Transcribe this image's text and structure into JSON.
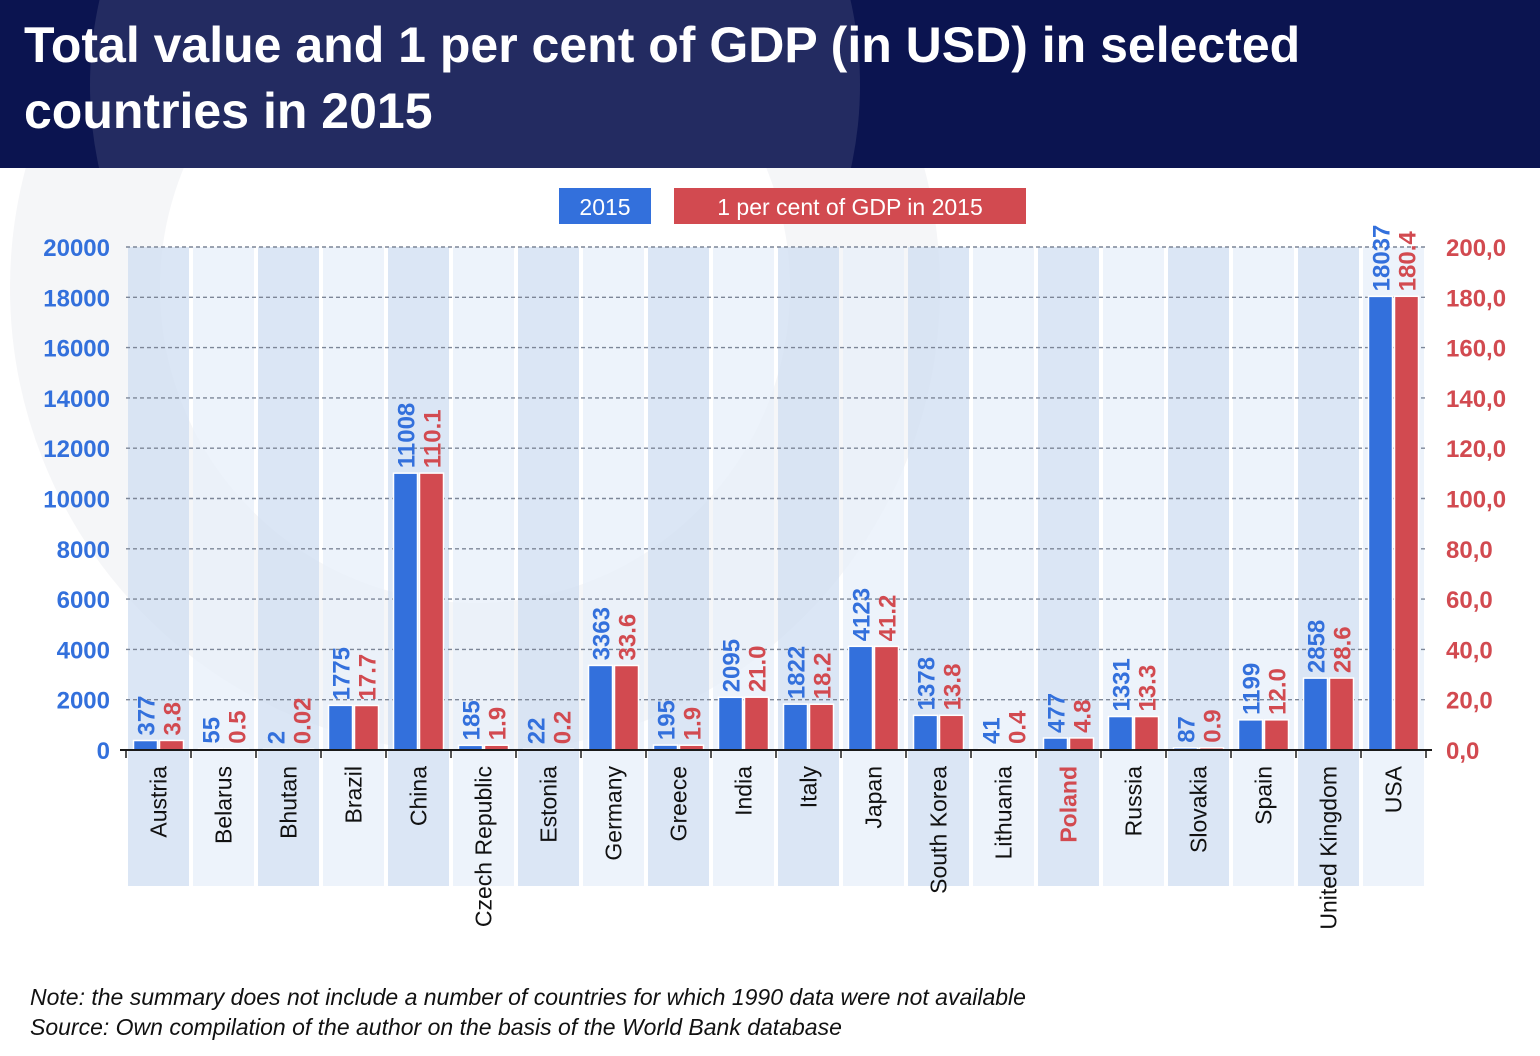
{
  "title": "Total value and 1 per cent of GDP (in USD) in selected countries in 2015",
  "note": "Note: the summary does not include a number of countries for which 1990 data were not available",
  "source": "Source: Own compilation of the author on the basis of the World Bank database",
  "colors": {
    "header_bg": "#0b1450",
    "series_2015": "#3370dc",
    "series_gdp1": "#d24a50",
    "stripe_dark": "#cfdef2",
    "stripe_light": "#e7eff9",
    "highlight_label": "#d24a50"
  },
  "chart_data": {
    "type": "bar",
    "categories": [
      "Austria",
      "Belarus",
      "Bhutan",
      "Brazil",
      "China",
      "Czech Republic",
      "Estonia",
      "Germany",
      "Greece",
      "India",
      "Italy",
      "Japan",
      "South Korea",
      "Lithuania",
      "Poland",
      "Russia",
      "Slovakia",
      "Spain",
      "United Kingdom",
      "USA"
    ],
    "highlighted_category": "Poland",
    "series": [
      {
        "name": "2015",
        "axis": "left",
        "values": [
          377,
          55,
          2,
          1775,
          11008,
          185,
          22,
          3363,
          195,
          2095,
          1822,
          4123,
          1378,
          41,
          477,
          1331,
          87,
          1199,
          2858,
          18037
        ],
        "labels": [
          "377",
          "55",
          "2",
          "1775",
          "11008",
          "185",
          "22",
          "3363",
          "195",
          "2095",
          "1822",
          "4123",
          "1378",
          "41",
          "477",
          "1331",
          "87",
          "1199",
          "2858",
          "18037"
        ]
      },
      {
        "name": "1 per cent of GDP in 2015",
        "axis": "right",
        "values": [
          3.8,
          0.5,
          0.02,
          17.7,
          110.1,
          1.9,
          0.2,
          33.6,
          1.9,
          21.0,
          18.2,
          41.2,
          13.8,
          0.4,
          4.8,
          13.3,
          0.9,
          12.0,
          28.6,
          180.4
        ],
        "labels": [
          "3.8",
          "0.5",
          "0.02",
          "17.7",
          "110.1",
          "1.9",
          "0.2",
          "33.6",
          "1.9",
          "21.0",
          "18.2",
          "41.2",
          "13.8",
          "0.4",
          "4.8",
          "13.3",
          "0.9",
          "12.0",
          "28.6",
          "180.4"
        ]
      }
    ],
    "ylim_left": [
      0,
      20000
    ],
    "yticks_left": [
      "0",
      "2000",
      "4000",
      "6000",
      "8000",
      "10000",
      "12000",
      "14000",
      "16000",
      "18000",
      "20000"
    ],
    "ylim_right": [
      0,
      200
    ],
    "yticks_right": [
      "0,0",
      "20,0",
      "40,0",
      "60,0",
      "80,0",
      "100,0",
      "120,0",
      "140,0",
      "160,0",
      "180,0",
      "200,0"
    ],
    "grid": "horizontal dashed",
    "legend_position": "top-center"
  }
}
